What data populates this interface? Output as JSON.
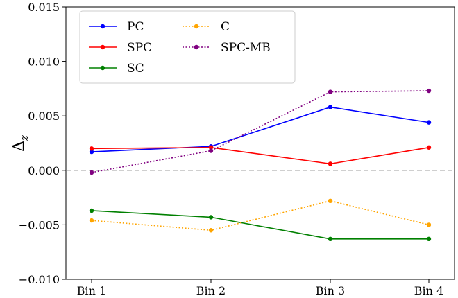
{
  "chart_data": {
    "type": "line",
    "categories": [
      "Bin 1",
      "Bin 2",
      "Bin 3",
      "Bin 4"
    ],
    "ylabel_base": "Δ",
    "ylabel_sub": "z",
    "ylim": [
      -0.01,
      0.015
    ],
    "yticks": [
      -0.01,
      -0.005,
      0.0,
      0.005,
      0.01,
      0.015
    ],
    "ytick_labels": [
      "−0.010",
      "−0.005",
      "0.000",
      "0.005",
      "0.010",
      "0.015"
    ],
    "reference_line": 0,
    "grid": false,
    "legend_position": "top-left",
    "series": [
      {
        "name": "PC",
        "color": "#0000ff",
        "style": "solid",
        "values": [
          0.0017,
          0.0022,
          0.0058,
          0.0044
        ]
      },
      {
        "name": "SPC",
        "color": "#ff0000",
        "style": "solid",
        "values": [
          0.002,
          0.0021,
          0.0006,
          0.0021
        ]
      },
      {
        "name": "SC",
        "color": "#008000",
        "style": "solid",
        "values": [
          -0.0037,
          -0.0043,
          -0.0063,
          -0.0063
        ]
      },
      {
        "name": "C",
        "color": "#ffa500",
        "style": "dotted",
        "values": [
          -0.0046,
          -0.0055,
          -0.0028,
          -0.005
        ]
      },
      {
        "name": "SPC-MB",
        "color": "#800080",
        "style": "dotted",
        "values": [
          -0.0002,
          0.0018,
          0.0072,
          0.0073
        ]
      }
    ]
  }
}
